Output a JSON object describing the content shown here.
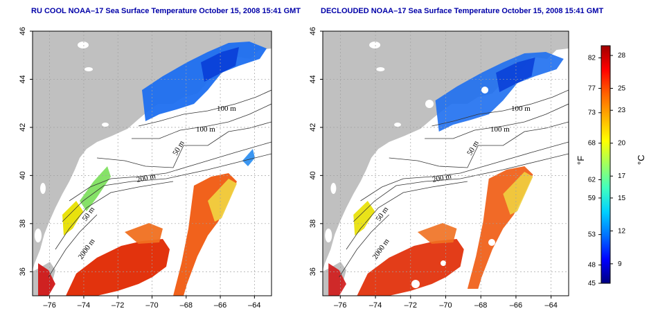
{
  "maps": [
    {
      "title": "RU COOL NOAA–17 Sea Surface Temperature October 15, 2008 15:41 GMT",
      "variant": "raw"
    },
    {
      "title": "DECLOUDED NOAA–17 Sea Surface Temperature October 15, 2008 15:41 GMT",
      "variant": "declouded"
    }
  ],
  "axes": {
    "lon_ticks": [
      "–76",
      "–74",
      "–72",
      "–70",
      "–68",
      "–66",
      "–64"
    ],
    "lon_values": [
      -76,
      -74,
      -72,
      -70,
      -68,
      -66,
      -64
    ],
    "lat_ticks": [
      "36",
      "38",
      "40",
      "42",
      "44",
      "46"
    ],
    "lat_values": [
      36,
      38,
      40,
      42,
      44,
      46
    ],
    "lon_range": [
      -77,
      -63
    ],
    "lat_range": [
      35,
      46
    ]
  },
  "contour_labels": [
    "100 m",
    "100 m",
    "50 m",
    "200 m",
    "50 m",
    "2000 m"
  ],
  "colorbar": {
    "fahrenheit_ticks": [
      "82",
      "77",
      "73",
      "68",
      "62",
      "59",
      "53",
      "48",
      "45"
    ],
    "celsius_ticks": [
      "28",
      "25",
      "23",
      "20",
      "17",
      "15",
      "12",
      "9"
    ],
    "fahrenheit_unit": "°F",
    "celsius_unit": "°C",
    "colors": [
      "#000080",
      "#0000ff",
      "#0070ff",
      "#00d0ff",
      "#40ffc0",
      "#a0ff60",
      "#ffff00",
      "#ffb000",
      "#ff6000",
      "#ff0000",
      "#a00000"
    ]
  },
  "colors": {
    "land": "#c0c0c0",
    "title": "#0000a8",
    "grid": "#a0a0a0"
  }
}
